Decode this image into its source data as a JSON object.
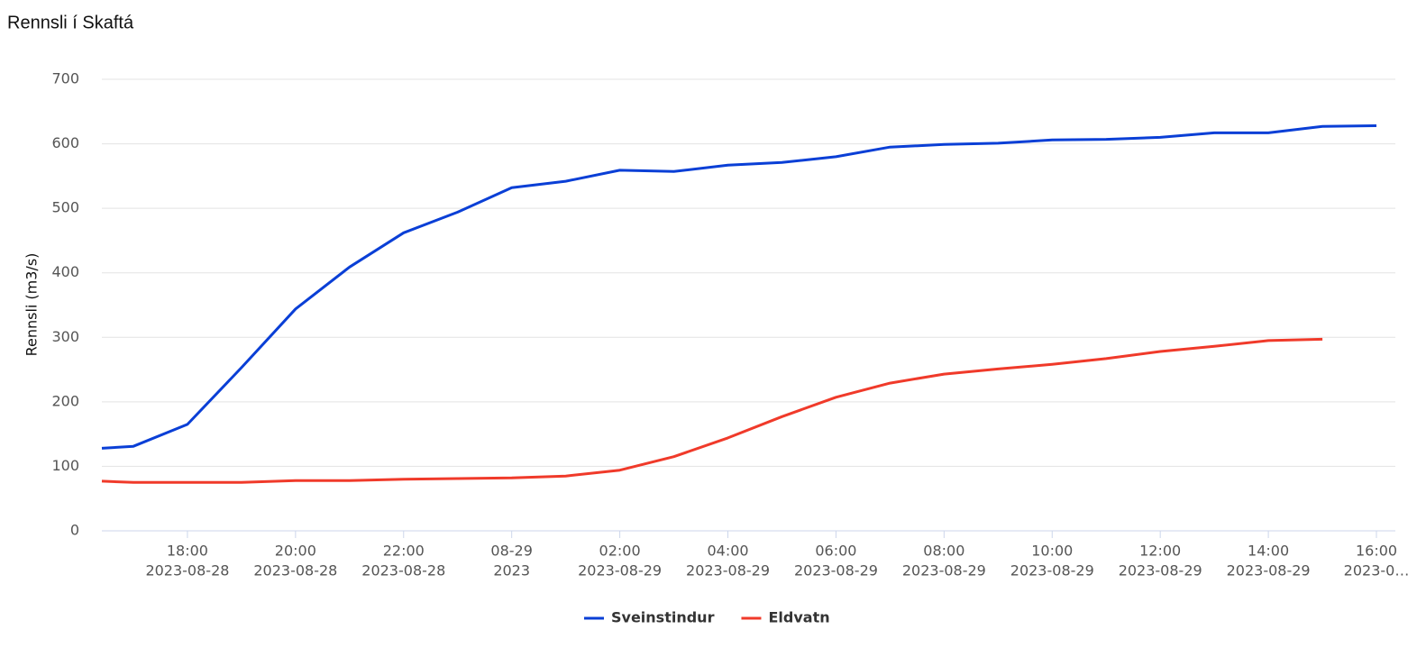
{
  "chart_data": {
    "type": "line",
    "title": "Rennsli í Skaftá",
    "y_label": "Rennsli (m3/s)",
    "x": [
      "2023-08-28T16:25",
      "2023-08-28T17:00",
      "2023-08-28T18:00",
      "2023-08-28T19:00",
      "2023-08-28T20:00",
      "2023-08-28T21:00",
      "2023-08-28T22:00",
      "2023-08-28T23:00",
      "2023-08-29T00:00",
      "2023-08-29T01:00",
      "2023-08-29T02:00",
      "2023-08-29T03:00",
      "2023-08-29T04:00",
      "2023-08-29T05:00",
      "2023-08-29T06:00",
      "2023-08-29T07:00",
      "2023-08-29T08:00",
      "2023-08-29T09:00",
      "2023-08-29T10:00",
      "2023-08-29T11:00",
      "2023-08-29T12:00",
      "2023-08-29T13:00",
      "2023-08-29T14:00",
      "2023-08-29T15:00",
      "2023-08-29T16:00"
    ],
    "series": [
      {
        "name": "Sveinstindur",
        "color": "#0a3fd6",
        "values": [
          128,
          131,
          165,
          253,
          344,
          409,
          462,
          494,
          532,
          542,
          559,
          557,
          567,
          571,
          580,
          595,
          599,
          601,
          606,
          607,
          610,
          617,
          617,
          627,
          628
        ]
      },
      {
        "name": "Eldvatn",
        "color": "#f03a2a",
        "values": [
          77,
          75,
          75,
          75,
          78,
          78,
          80,
          81,
          82,
          85,
          94,
          115,
          144,
          177,
          207,
          229,
          243,
          251,
          258,
          267,
          278,
          286,
          295,
          297,
          null
        ]
      }
    ],
    "xlim": [
      "2023-08-28T16:25",
      "2023-08-29T16:21"
    ],
    "xticks": [
      {
        "value": "2023-08-28T18:00",
        "label": [
          "18:00",
          "2023-08-28"
        ]
      },
      {
        "value": "2023-08-28T20:00",
        "label": [
          "20:00",
          "2023-08-28"
        ]
      },
      {
        "value": "2023-08-28T22:00",
        "label": [
          "22:00",
          "2023-08-28"
        ]
      },
      {
        "value": "2023-08-29T00:00",
        "label": [
          "08-29",
          "2023"
        ]
      },
      {
        "value": "2023-08-29T02:00",
        "label": [
          "02:00",
          "2023-08-29"
        ]
      },
      {
        "value": "2023-08-29T04:00",
        "label": [
          "04:00",
          "2023-08-29"
        ]
      },
      {
        "value": "2023-08-29T06:00",
        "label": [
          "06:00",
          "2023-08-29"
        ]
      },
      {
        "value": "2023-08-29T08:00",
        "label": [
          "08:00",
          "2023-08-29"
        ]
      },
      {
        "value": "2023-08-29T10:00",
        "label": [
          "10:00",
          "2023-08-29"
        ]
      },
      {
        "value": "2023-08-29T12:00",
        "label": [
          "12:00",
          "2023-08-29"
        ]
      },
      {
        "value": "2023-08-29T14:00",
        "label": [
          "14:00",
          "2023-08-29"
        ]
      },
      {
        "value": "2023-08-29T16:00",
        "label": [
          "16:00",
          "2023-0…"
        ]
      }
    ],
    "ylim": [
      0,
      700
    ],
    "yticks": [
      0,
      100,
      200,
      300,
      400,
      500,
      600,
      700
    ],
    "grid": true
  }
}
